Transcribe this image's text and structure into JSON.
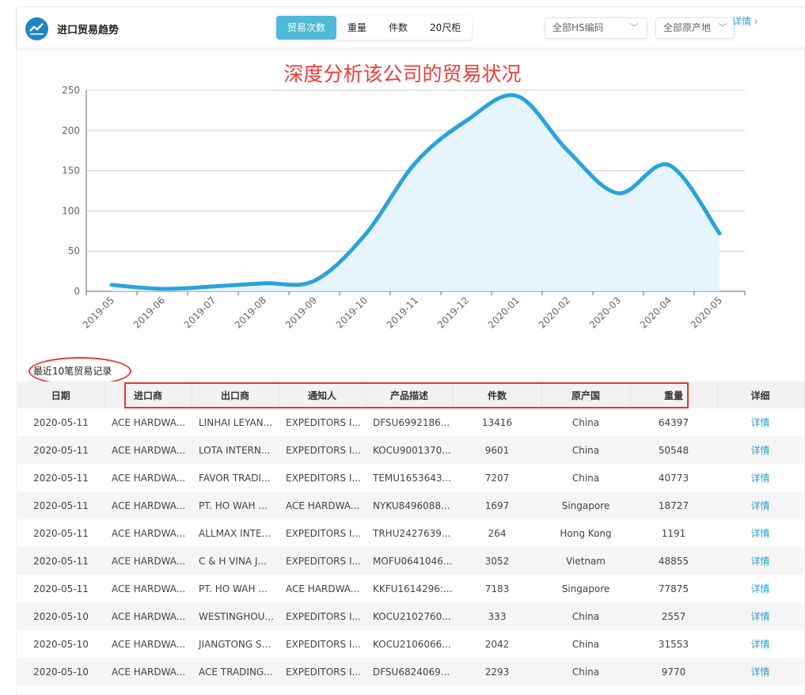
{
  "header": {
    "title": "进口贸易趋势",
    "tabs": [
      {
        "label": "贸易次数",
        "active": true
      },
      {
        "label": "重量"
      },
      {
        "label": "件数"
      },
      {
        "label": "20尺柜"
      }
    ],
    "hs_select": "全部HS编码",
    "origin_select": "全部原产地",
    "detail_link": "详情 ›"
  },
  "annotation": "深度分析该公司的贸易状况",
  "chart_data": {
    "type": "area",
    "categories": [
      "2019-05",
      "2019-06",
      "2019-07",
      "2019-08",
      "2019-09",
      "2019-10",
      "2019-11",
      "2019-12",
      "2020-01",
      "2020-02",
      "2020-03",
      "2020-04",
      "2020-05"
    ],
    "values": [
      8,
      3,
      6,
      10,
      13,
      70,
      160,
      212,
      243,
      175,
      122,
      157,
      72
    ],
    "ylim": [
      0,
      250
    ],
    "yticks": [
      0,
      50,
      100,
      150,
      200,
      250
    ],
    "grid": true,
    "line_color": "#29a3dc",
    "fill_color": "#e6f4fb",
    "smooth": true
  },
  "records": {
    "label": "最近10笔贸易记录",
    "columns": [
      "日期",
      "进口商",
      "出口商",
      "通知人",
      "产品描述",
      "件数",
      "原产国",
      "重量",
      "详细"
    ],
    "rows": [
      [
        "2020-05-11",
        "ACE HARDWA...",
        "LINHAI LEYAN...",
        "EXPEDITORS I...",
        "DFSU6992186...",
        "13416",
        "China",
        "64397",
        "详情"
      ],
      [
        "2020-05-11",
        "ACE HARDWA...",
        "LOTA INTERN...",
        "EXPEDITORS I...",
        "KOCU9001370...",
        "9601",
        "China",
        "50548",
        "详情"
      ],
      [
        "2020-05-11",
        "ACE HARDWA...",
        "FAVOR TRADI...",
        "EXPEDITORS I...",
        "TEMU1653643...",
        "7207",
        "China",
        "40773",
        "详情"
      ],
      [
        "2020-05-11",
        "ACE HARDWA...",
        "PT. HO WAH ...",
        "ACE HARDWA...",
        "NYKU8496088...",
        "1697",
        "Singapore",
        "18727",
        "详情"
      ],
      [
        "2020-05-11",
        "ACE HARDWA...",
        "ALLMAX INTE...",
        "EXPEDITORS I...",
        "TRHU2427639...",
        "264",
        "Hong Kong",
        "1191",
        "详情"
      ],
      [
        "2020-05-11",
        "ACE HARDWA...",
        "C & H VINA J...",
        "EXPEDITORS I...",
        "MOFU0641046...",
        "3052",
        "Vietnam",
        "48855",
        "详情"
      ],
      [
        "2020-05-11",
        "ACE HARDWA...",
        "PT. HO WAH ...",
        "ACE HARDWA...",
        "KKFU1614296:...",
        "7183",
        "Singapore",
        "77875",
        "详情"
      ],
      [
        "2020-05-10",
        "ACE HARDWA...",
        "WESTINGHOU...",
        "EXPEDITORS I...",
        "KOCU2102760...",
        "333",
        "China",
        "2557",
        "详情"
      ],
      [
        "2020-05-10",
        "ACE HARDWA...",
        "JIANGTONG S...",
        "EXPEDITORS I...",
        "KOCU2106066...",
        "2042",
        "China",
        "31553",
        "详情"
      ],
      [
        "2020-05-10",
        "ACE HARDWA...",
        "ACE TRADING...",
        "EXPEDITORS I...",
        "DFSU6824069...",
        "2293",
        "China",
        "9770",
        "详情"
      ]
    ]
  }
}
